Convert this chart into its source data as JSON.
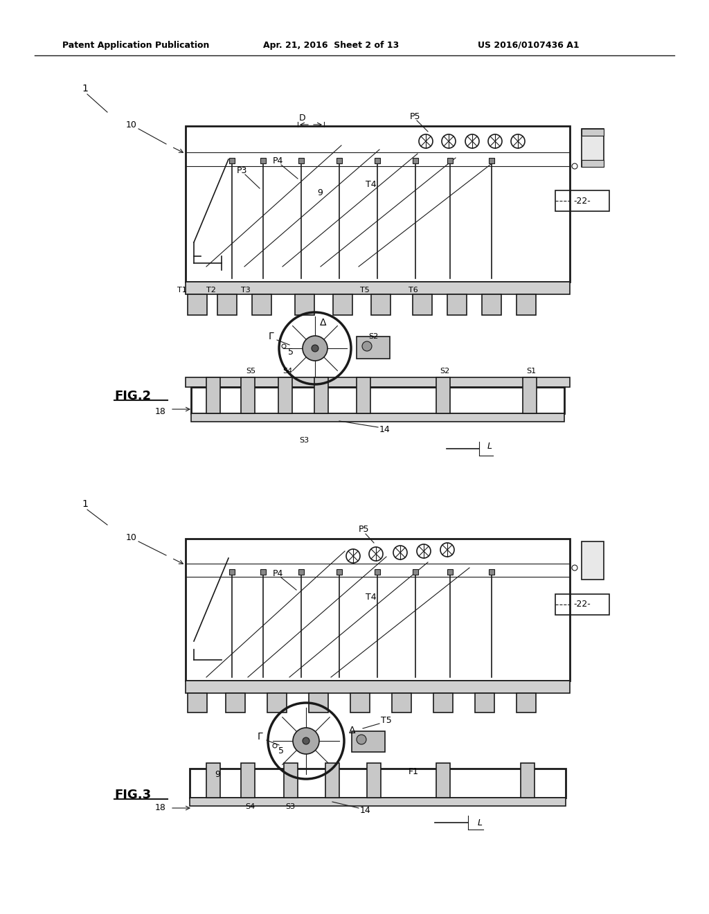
{
  "bg_color": "#ffffff",
  "fig_width": 10.24,
  "fig_height": 13.2,
  "header_text": "Patent Application Publication",
  "header_date": "Apr. 21, 2016  Sheet 2 of 13",
  "header_patent": "US 2016/0107436 A1",
  "fig2_label": "FIG.2",
  "fig3_label": "FIG.3"
}
